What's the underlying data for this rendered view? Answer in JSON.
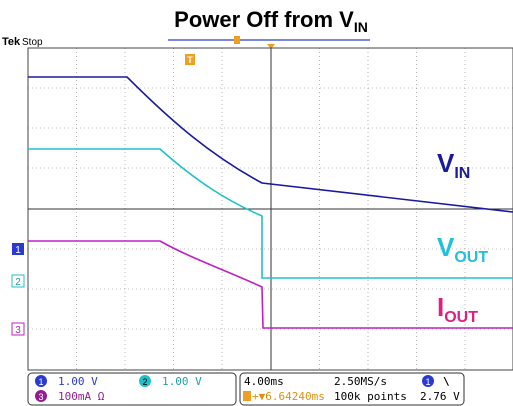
{
  "title": {
    "main": "Power Off from V",
    "sub": "IN"
  },
  "status": {
    "brand": "Tek",
    "state": "Stop"
  },
  "trace_labels": [
    {
      "main": "V",
      "sub": "IN"
    },
    {
      "main": "V",
      "sub": "OUT"
    },
    {
      "main": "I",
      "sub": "OUT"
    }
  ],
  "channel_markers": [
    "1",
    "2",
    "3"
  ],
  "trigger_marker": "T",
  "readout": {
    "ch1": {
      "id": "1",
      "scale": "1.00 V"
    },
    "ch2": {
      "id": "2",
      "scale": "1.00 V"
    },
    "ch3": {
      "id": "3",
      "scale": "100mA Ω"
    },
    "timebase": "4.00ms",
    "sample_rate": "2.50MS/s",
    "position": "+▼6.64240ms",
    "record_length": "100k points",
    "trigger_source": "1",
    "trigger_slope": "\\",
    "trigger_level": "2.76 V"
  }
}
